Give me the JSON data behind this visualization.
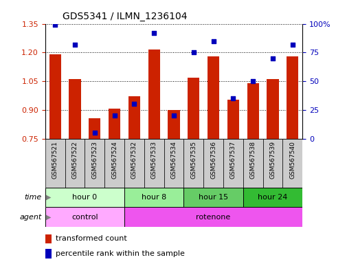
{
  "title": "GDS5341 / ILMN_1236104",
  "samples": [
    "GSM567521",
    "GSM567522",
    "GSM567523",
    "GSM567524",
    "GSM567532",
    "GSM567533",
    "GSM567534",
    "GSM567535",
    "GSM567536",
    "GSM567537",
    "GSM567538",
    "GSM567539",
    "GSM567540"
  ],
  "transformed_count": [
    1.19,
    1.06,
    0.855,
    0.905,
    0.97,
    1.215,
    0.9,
    1.07,
    1.18,
    0.955,
    1.04,
    1.06,
    1.18
  ],
  "percentile_rank": [
    99,
    82,
    5,
    20,
    30,
    92,
    20,
    75,
    85,
    35,
    50,
    70,
    82
  ],
  "ylim_left": [
    0.75,
    1.35
  ],
  "ylim_right": [
    0,
    100
  ],
  "yticks_left": [
    0.75,
    0.9,
    1.05,
    1.2,
    1.35
  ],
  "yticks_right": [
    0,
    25,
    50,
    75,
    100
  ],
  "bar_color": "#cc2200",
  "dot_color": "#0000bb",
  "time_groups": [
    {
      "label": "hour 0",
      "start": 0,
      "end": 4,
      "color": "#ccffcc"
    },
    {
      "label": "hour 8",
      "start": 4,
      "end": 7,
      "color": "#99ee99"
    },
    {
      "label": "hour 15",
      "start": 7,
      "end": 10,
      "color": "#66cc66"
    },
    {
      "label": "hour 24",
      "start": 10,
      "end": 13,
      "color": "#33bb33"
    }
  ],
  "agent_groups": [
    {
      "label": "control",
      "start": 0,
      "end": 4,
      "color": "#ffaaff"
    },
    {
      "label": "rotenone",
      "start": 4,
      "end": 13,
      "color": "#ee55ee"
    }
  ],
  "tick_label_color_left": "#cc2200",
  "tick_label_color_right": "#0000bb",
  "sample_box_color": "#cccccc",
  "label_left_text": [
    "time",
    "agent"
  ]
}
